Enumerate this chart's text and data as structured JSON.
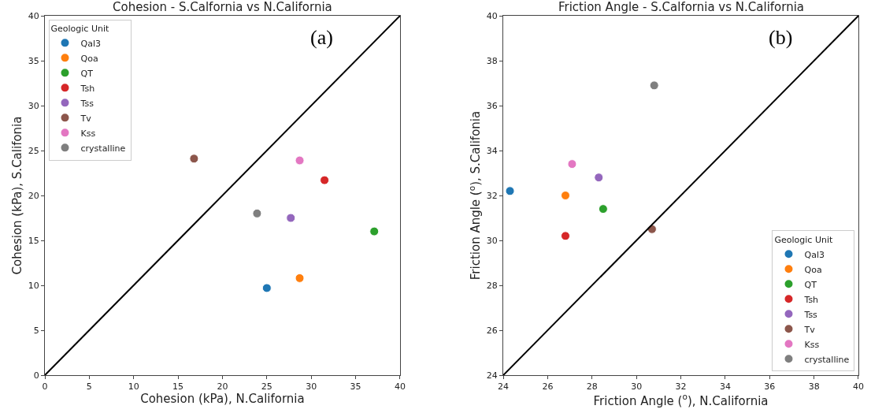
{
  "chart_data": [
    {
      "type": "scatter",
      "title": "Cohesion - S.Calfornia vs N.California",
      "xlabel": "Cohesion (kPa), N.California",
      "ylabel": "Cohesion (kPa), S.Califonia",
      "legend_title": "Geologic Unit",
      "annotations": [
        "(a)"
      ],
      "xlim": [
        0,
        40
      ],
      "ylim": [
        0,
        40
      ],
      "xticks": [
        0,
        5,
        10,
        15,
        20,
        25,
        30,
        35,
        40
      ],
      "yticks": [
        0,
        5,
        10,
        15,
        20,
        25,
        30,
        35,
        40
      ],
      "legend": "top left",
      "marker": "circle",
      "series": [
        {
          "name": "Qal3",
          "color": "#1f77b4",
          "x": [
            25.0
          ],
          "values": [
            9.7
          ]
        },
        {
          "name": "Qoa",
          "color": "#ff7f0e",
          "x": [
            28.7
          ],
          "values": [
            10.8
          ]
        },
        {
          "name": "QT",
          "color": "#2ca02c",
          "x": [
            37.1
          ],
          "values": [
            16.0
          ]
        },
        {
          "name": "Tsh",
          "color": "#d62728",
          "x": [
            31.5
          ],
          "values": [
            21.7
          ]
        },
        {
          "name": "Tss",
          "color": "#9467bd",
          "x": [
            27.7
          ],
          "values": [
            17.5
          ]
        },
        {
          "name": "Tv",
          "color": "#8c564b",
          "x": [
            16.8
          ],
          "values": [
            24.1
          ]
        },
        {
          "name": "Kss",
          "color": "#e377c2",
          "x": [
            28.7
          ],
          "values": [
            23.9
          ]
        },
        {
          "name": "crystalline",
          "color": "#7f7f7f",
          "x": [
            23.9
          ],
          "values": [
            18.0
          ]
        },
        {
          "type": "line",
          "marker": "none",
          "color": "#000000",
          "x": [
            0,
            40
          ],
          "values": [
            0,
            40
          ]
        }
      ]
    },
    {
      "type": "scatter",
      "title": "Friction Angle - S.Calfornia vs N.California",
      "xlabel": "Friction Angle ($^{o}$), N.California",
      "ylabel": "Friction Angle ($^{o}$), S.Califonia",
      "legend_title": "Geologic Unit",
      "annotations": [
        "(b)"
      ],
      "xlim": [
        24,
        40
      ],
      "ylim": [
        24,
        40
      ],
      "xticks": [
        24,
        26,
        28,
        30,
        32,
        34,
        36,
        38,
        40
      ],
      "yticks": [
        24,
        26,
        28,
        30,
        32,
        34,
        36,
        38,
        40
      ],
      "legend": "bottom right",
      "marker": "circle",
      "series": [
        {
          "name": "Qal3",
          "color": "#1f77b4",
          "x": [
            24.3
          ],
          "values": [
            32.2
          ]
        },
        {
          "name": "Qoa",
          "color": "#ff7f0e",
          "x": [
            26.8
          ],
          "values": [
            32.0
          ]
        },
        {
          "name": "QT",
          "color": "#2ca02c",
          "x": [
            28.5
          ],
          "values": [
            31.4
          ]
        },
        {
          "name": "Tsh",
          "color": "#d62728",
          "x": [
            26.8
          ],
          "values": [
            30.2
          ]
        },
        {
          "name": "Tss",
          "color": "#9467bd",
          "x": [
            28.3
          ],
          "values": [
            32.8
          ]
        },
        {
          "name": "Tv",
          "color": "#8c564b",
          "x": [
            30.7
          ],
          "values": [
            30.5
          ]
        },
        {
          "name": "Kss",
          "color": "#e377c2",
          "x": [
            27.1
          ],
          "values": [
            33.4
          ]
        },
        {
          "name": "crystalline",
          "color": "#7f7f7f",
          "x": [
            30.8
          ],
          "values": [
            36.9
          ]
        },
        {
          "type": "line",
          "marker": "none",
          "color": "#000000",
          "x": [
            24,
            40
          ],
          "values": [
            24,
            40
          ]
        }
      ]
    }
  ]
}
